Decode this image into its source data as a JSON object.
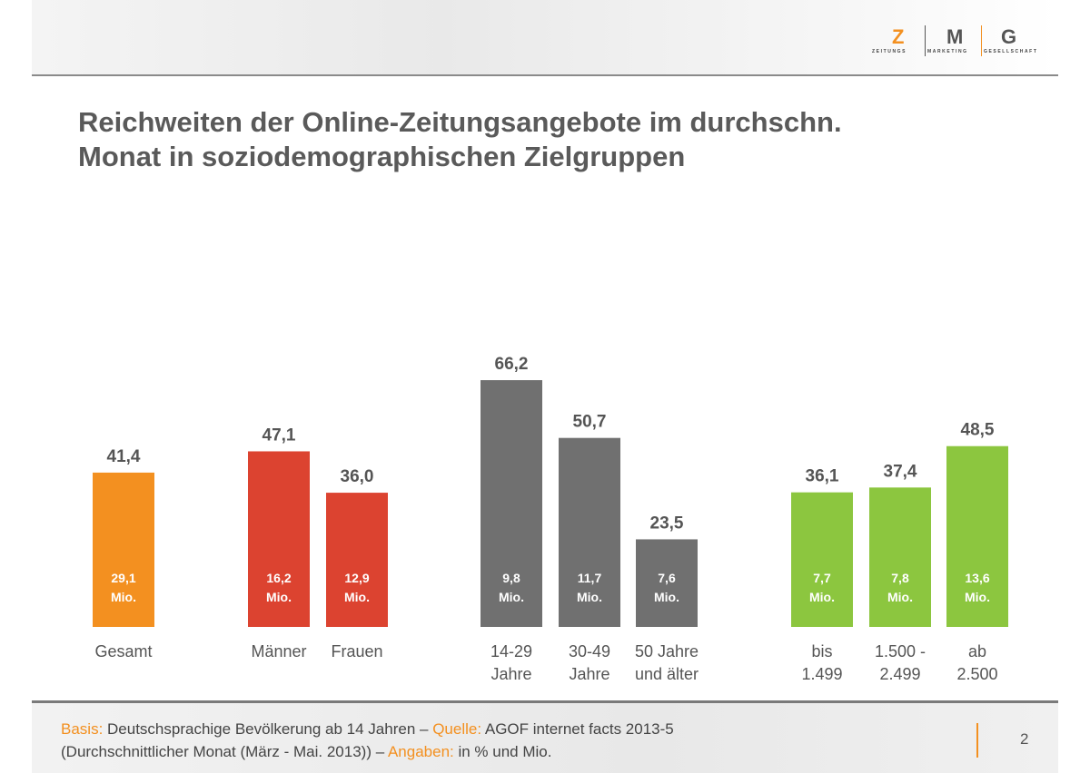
{
  "logo": {
    "letters": [
      "Z",
      "M",
      "G"
    ],
    "subtitle": [
      "ZEITUNGS",
      "MARKETING",
      "GESELLSCHAFT"
    ],
    "accent": "#f39020"
  },
  "title": {
    "line1": "Reichweiten der Online-Zeitungsangebote im durchschn.",
    "line2": "Monat in soziodemographischen Zielgruppen"
  },
  "chart_data": {
    "type": "bar",
    "categories": [
      [
        "Gesamt"
      ],
      [
        "Männer"
      ],
      [
        "Frauen"
      ],
      [
        "14-29",
        "Jahre"
      ],
      [
        "30-49",
        "Jahre"
      ],
      [
        "50 Jahre",
        "und älter"
      ],
      [
        "bis",
        "1.499"
      ],
      [
        "1.500 -",
        "2.499"
      ],
      [
        "ab",
        "2.500"
      ]
    ],
    "values": [
      41.4,
      47.1,
      36.0,
      66.2,
      50.7,
      23.5,
      36.1,
      37.4,
      48.5
    ],
    "value_labels": [
      "41,4",
      "47,1",
      "36,0",
      "66,2",
      "50,7",
      "23,5",
      "36,1",
      "37,4",
      "48,5"
    ],
    "inner_labels": [
      "29,1",
      "16,2",
      "12,9",
      "9,8",
      "11,7",
      "7,6",
      "7,7",
      "7,8",
      "13,6"
    ],
    "inner_unit": "Mio.",
    "colors": [
      "#f39020",
      "#dc4330",
      "#dc4330",
      "#707070",
      "#707070",
      "#707070",
      "#8cc63f",
      "#8cc63f",
      "#8cc63f"
    ],
    "ylim": [
      0,
      70
    ],
    "grid": false
  },
  "footer": {
    "basis_label": "Basis:",
    "basis_text": " Deutschsprachige Bevölkerung ab 14 Jahren – ",
    "quelle_label": "Quelle:",
    "quelle_text": " AGOF internet facts 2013-5",
    "line2_text": "(Durchschnittlicher Monat (März - Mai. 2013))  – ",
    "angaben_label": "Angaben:",
    "angaben_text": " in % und Mio.",
    "page_number": "2"
  }
}
